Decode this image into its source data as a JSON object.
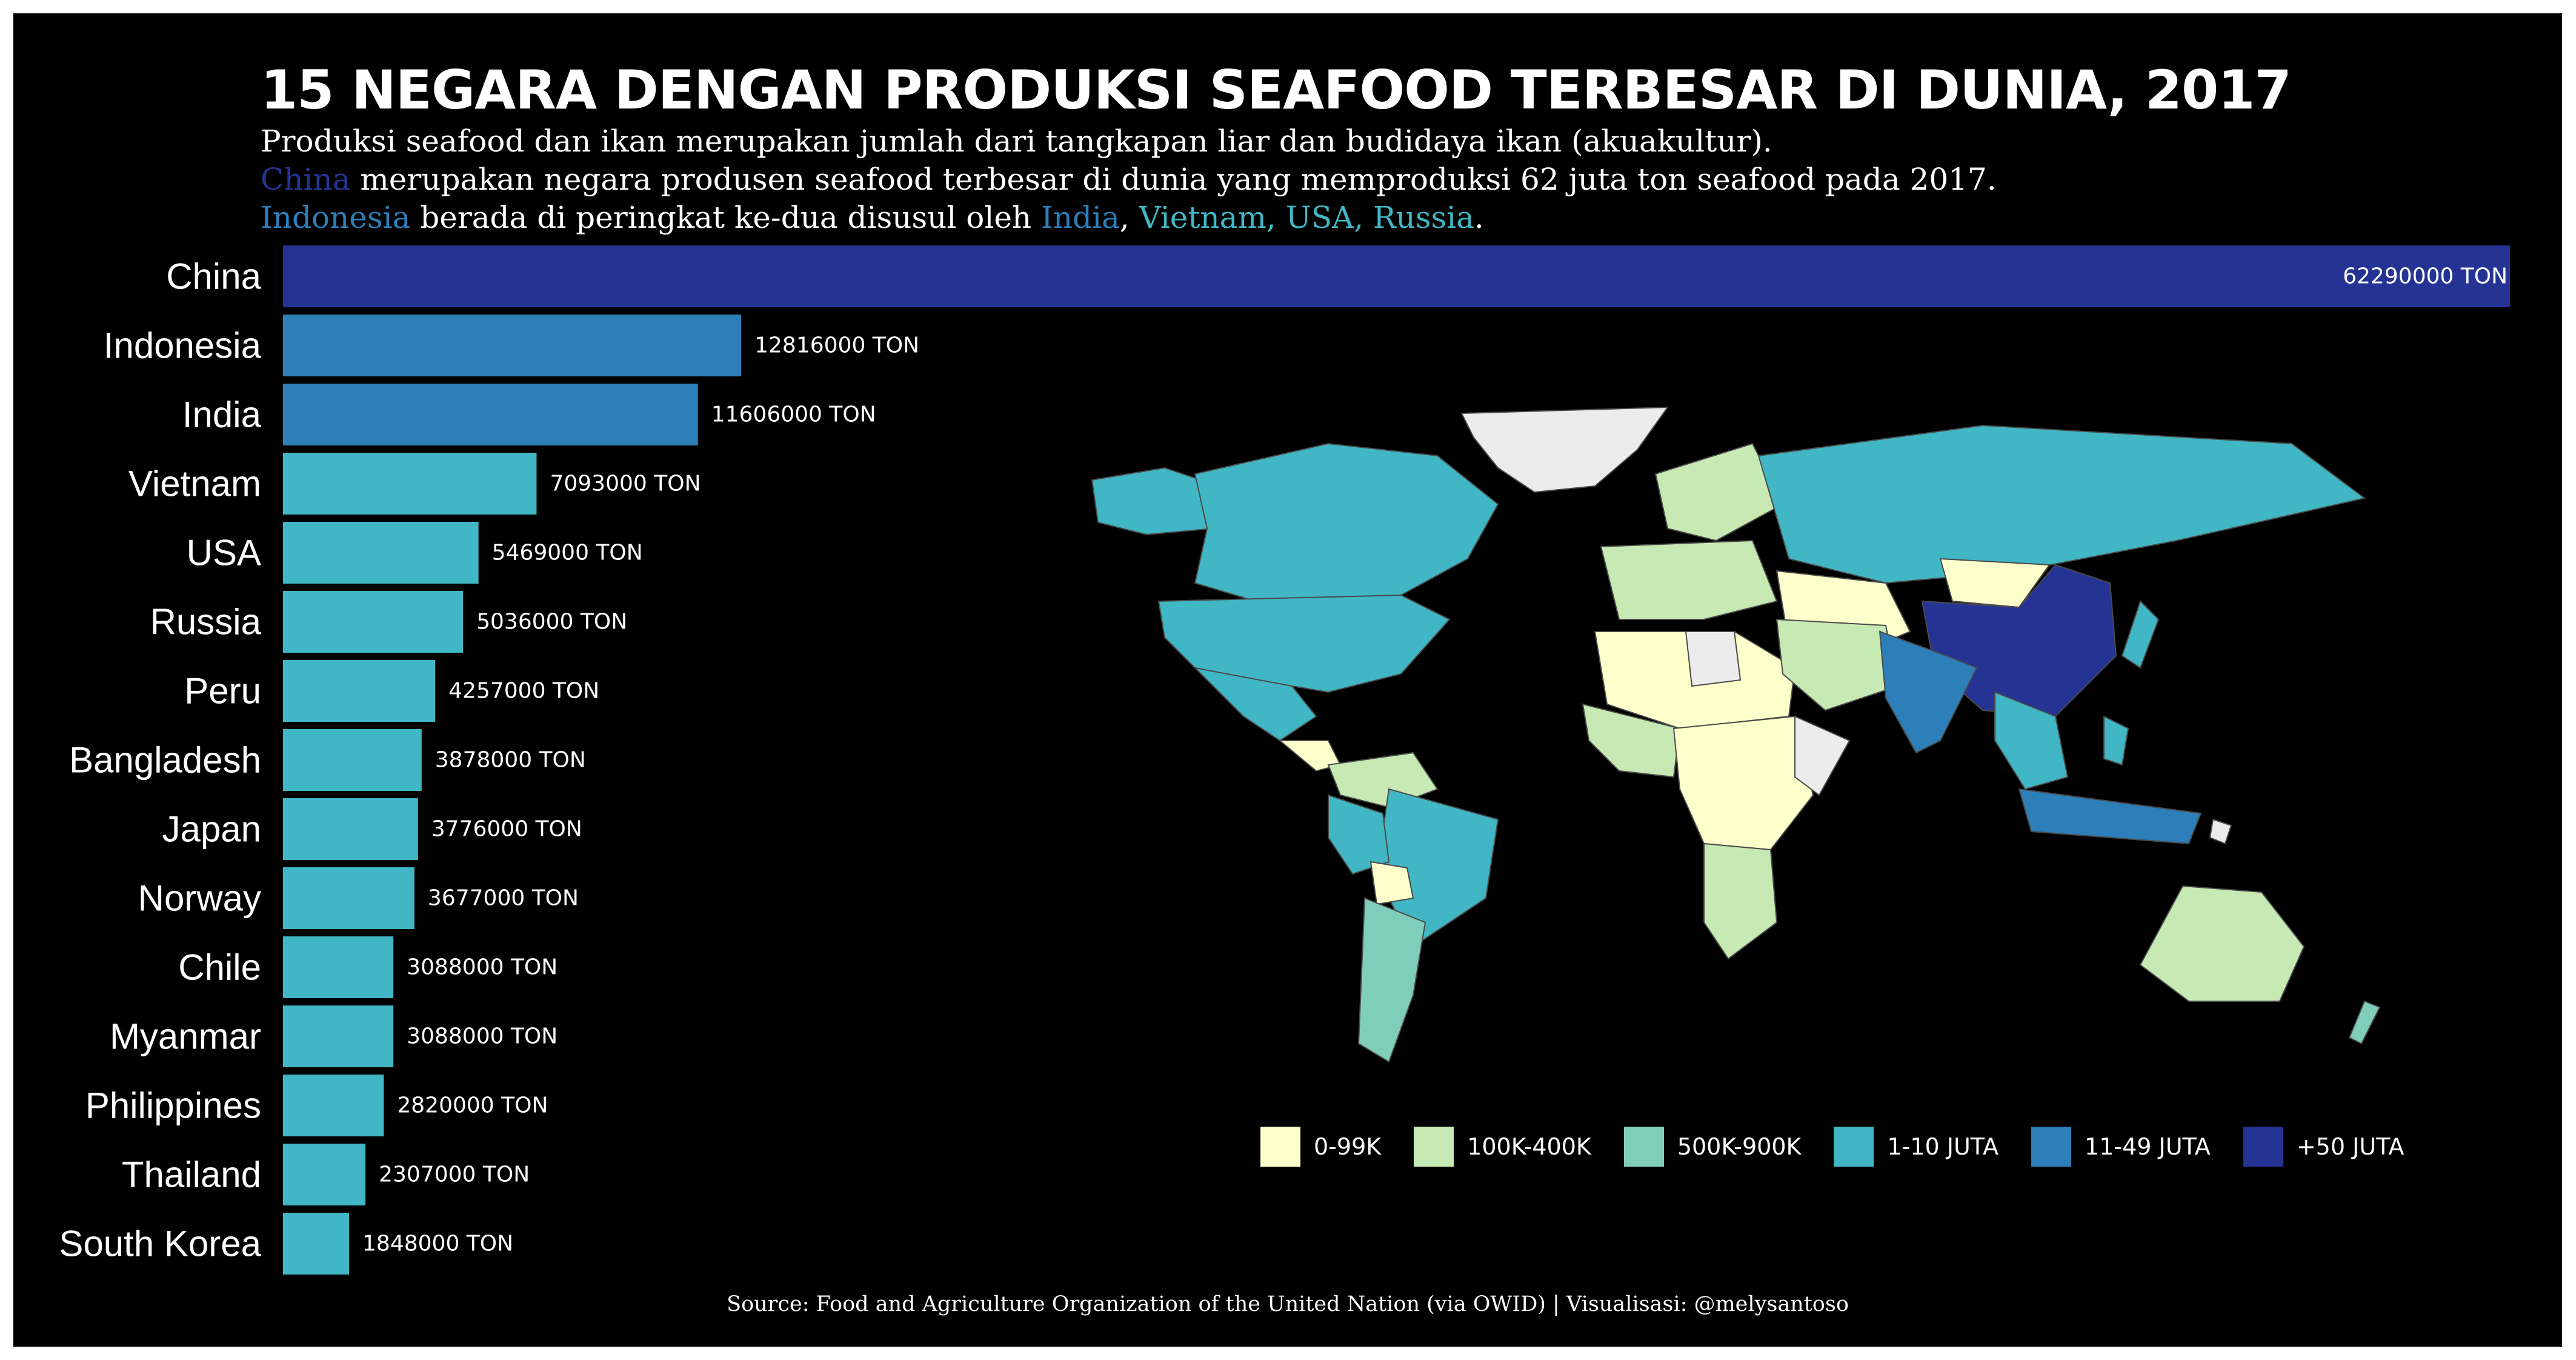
{
  "title": "15 NEGARA DENGAN PRODUKSI SEAFOOD TERBESAR DI DUNIA, 2017",
  "subtitle": {
    "line1": "Produksi seafood dan ikan merupakan jumlah dari tangkapan liar dan budidaya ikan (akuakultur).",
    "line2_hl": "China",
    "line2_rest": " merupakan negara produsen seafood terbesar di dunia yang memproduksi 62 juta ton seafood pada 2017.",
    "line3_hl1": "Indonesia",
    "line3_mid": " berada di peringkat ke-dua disusul oleh ",
    "line3_hl2": "India",
    "line3_sep": ", ",
    "line3_hl3": "Vietnam, USA, Russia",
    "line3_end": "."
  },
  "chart_data": {
    "type": "bar",
    "orientation": "horizontal",
    "categories": [
      "China",
      "Indonesia",
      "India",
      "Vietnam",
      "USA",
      "Russia",
      "Peru",
      "Bangladesh",
      "Japan",
      "Norway",
      "Chile",
      "Myanmar",
      "Philippines",
      "Thailand",
      "South Korea"
    ],
    "values": [
      62290000,
      12816000,
      11606000,
      7093000,
      5469000,
      5036000,
      4257000,
      3878000,
      3776000,
      3677000,
      3088000,
      3088000,
      2820000,
      2307000,
      1848000
    ],
    "unit_suffix": " TON",
    "colors": [
      "#253494",
      "#2c7fb8",
      "#2c7fb8",
      "#41b6c4",
      "#41b6c4",
      "#41b6c4",
      "#41b6c4",
      "#41b6c4",
      "#41b6c4",
      "#41b6c4",
      "#41b6c4",
      "#41b6c4",
      "#41b6c4",
      "#41b6c4",
      "#41b6c4"
    ],
    "xlim": [
      0,
      62290000
    ]
  },
  "map": {
    "colors": {
      "c0": "#ffffcc",
      "c1": "#c7e9b4",
      "c2": "#7fcdbb",
      "c3": "#41b6c4",
      "c4": "#2c7fb8",
      "c5": "#253494",
      "nodata": "#ececec"
    }
  },
  "legend": [
    {
      "label": "0-99K",
      "color": "#ffffcc"
    },
    {
      "label": "100K-400K",
      "color": "#c7e9b4"
    },
    {
      "label": "500K-900K",
      "color": "#7fcdbb"
    },
    {
      "label": "1-10 JUTA",
      "color": "#41b6c4"
    },
    {
      "label": "11-49 JUTA",
      "color": "#2c7fb8"
    },
    {
      "label": "+50 JUTA",
      "color": "#253494"
    }
  ],
  "source": "Source: Food and Agriculture Organization of the United Nation (via OWID) | Visualisasi: @melysantoso"
}
